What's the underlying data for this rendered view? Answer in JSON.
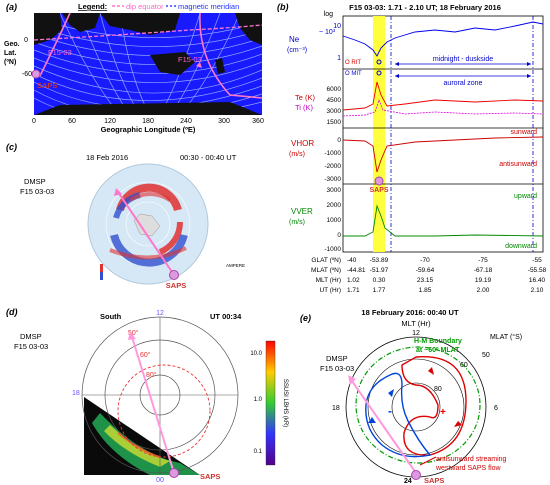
{
  "panel_a": {
    "label": "(a)",
    "legend_title": "Legend:",
    "legend_dip": "dip equator",
    "legend_mag": "magnetic meridian",
    "ylabel_lines": [
      "Geo.",
      "Lat.",
      "(ºN)"
    ],
    "yticks": [
      "0",
      "-60"
    ],
    "xticks": [
      "0",
      "60",
      "120",
      "180",
      "240",
      "300",
      "360"
    ],
    "xlabel": "Geographic Longitude (ºE)",
    "track_label_1": "F15-03",
    "track_label_2": "F15-03",
    "saps": "SAPS",
    "colors": {
      "ocean": "#1a1aff",
      "meridian": "#8fa8ff",
      "track": "#ff77cc",
      "land": "#111111"
    }
  },
  "panel_b": {
    "label": "(b)",
    "title": "F15 03-03: 1.71 - 2.10 UT; 18 February 2016",
    "log": "log",
    "ne_label": "Ne",
    "ne_unit": "(cm⁻³)",
    "ne_scale": "~ 10³",
    "ne_ticks": [
      "10",
      "1"
    ],
    "rit_label": "O RIT",
    "mit_label": "O MIT",
    "midnight": "midnight - duskside",
    "auroral": "auroral zone",
    "te_label": "Te (K)",
    "ti_label": "Ti (K)",
    "t_ticks": [
      "6000",
      "4500",
      "3000",
      "1500"
    ],
    "vhor_label": "VHOR",
    "vhor_unit": "(m/s)",
    "vhor_ticks": [
      "0",
      "-1000",
      "-2000",
      "-3000"
    ],
    "sunward": "sunward",
    "antisunward": "antisunward",
    "vver_label": "VVER",
    "vver_unit": "(m/s)",
    "vver_ticks": [
      "3000",
      "2000",
      "1000",
      "0",
      "-1000"
    ],
    "upward": "upward",
    "downward": "downward",
    "saps": "SAPS",
    "table_rows": [
      {
        "name": "GLAT (ºN)",
        "vals": [
          "-40",
          "-53.89",
          "-70",
          "-75",
          "-55"
        ]
      },
      {
        "name": "MLAT (ºN)",
        "vals": [
          "-44.81",
          "-51.97",
          "-59.64",
          "-67.18",
          "-55.58"
        ]
      },
      {
        "name": "MLT (Hr)",
        "vals": [
          "1.02",
          "0.30",
          "23.15",
          "19.19",
          "16.40"
        ]
      },
      {
        "name": "UT (Hr)",
        "vals": [
          "1.71",
          "1.77",
          "1.85",
          "2.00",
          "2.10"
        ]
      }
    ]
  },
  "panel_c": {
    "label": "(c)",
    "date": "18 Feb 2016",
    "time": "00:30 - 00:40 UT",
    "sat_line1": "DMSP",
    "sat_line2": "F15 03-03",
    "ampere": "AMPERE",
    "saps": "SAPS"
  },
  "panel_d": {
    "label": "(d)",
    "hemisphere": "South",
    "ut": "UT 00:34",
    "sat_line1": "DMSP",
    "sat_line2": "F15 03-03",
    "lat_50": "50°",
    "lat_60": "60°",
    "lat_80": "80°",
    "mlt_12": "12",
    "mlt_18": "18",
    "mlt_00": "00",
    "saps": "SAPS",
    "cbar_label": "SSUSI LBHS (kR)",
    "cbar_ticks": [
      "10.0",
      "1.0",
      "0.1"
    ]
  },
  "panel_e": {
    "label": "(e)",
    "title": "18 February 2016: 00:40 UT",
    "mlt_hr": "MLT (Hr)",
    "mlt_12": "12",
    "mlat": "MLAT (°S)",
    "hm_line1": "H-M Boundary",
    "hm_line2": "at ~60º MLAT",
    "ring_60": "60",
    "ring_50": "50",
    "ring_80": "80",
    "mlt_18": "18",
    "mlt_6": "6",
    "mlt_24": "24",
    "sat_line1": "DMSP",
    "sat_line2": "F15 03-03",
    "plus": "+",
    "minus": "-",
    "anti1": "antisunward streaming",
    "anti2": "westward SAPS flow",
    "saps": "SAPS"
  }
}
